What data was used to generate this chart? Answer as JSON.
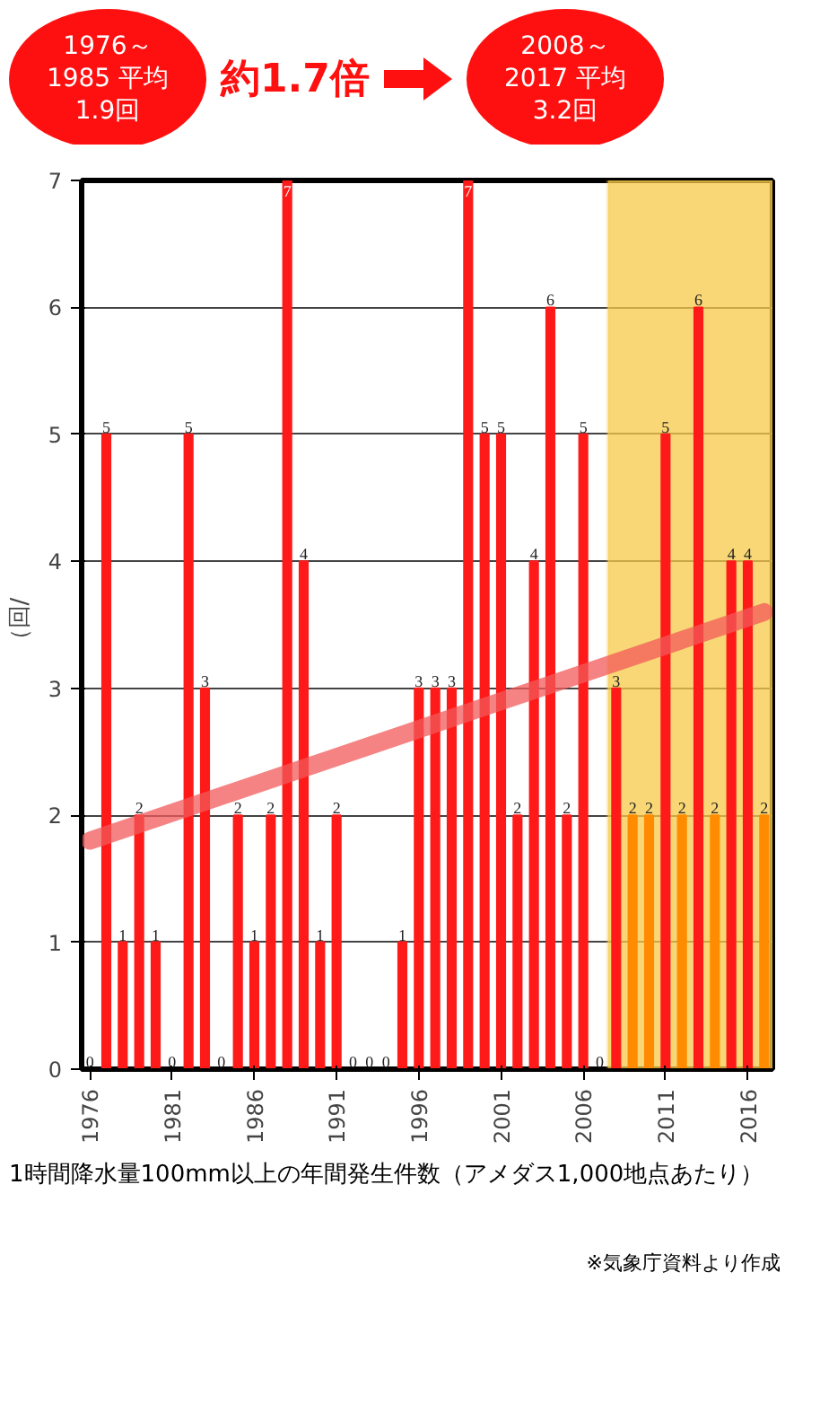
{
  "chart_data": {
    "type": "bar",
    "ylabel": "（回/",
    "xlabel": "1時間降水量100mm以上の年間発生件数（アメダス1,000地点あたり）",
    "x": [
      1976,
      1977,
      1978,
      1979,
      1980,
      1981,
      1982,
      1983,
      1984,
      1985,
      1986,
      1987,
      1988,
      1989,
      1990,
      1991,
      1992,
      1993,
      1994,
      1995,
      1996,
      1997,
      1998,
      1999,
      2000,
      2001,
      2002,
      2003,
      2004,
      2005,
      2006,
      2007,
      2008,
      2009,
      2010,
      2011,
      2012,
      2013,
      2014,
      2015,
      2016,
      2017
    ],
    "series": [
      {
        "color": "#ff1a1a",
        "values": [
          0,
          5,
          1,
          2,
          1,
          0,
          5,
          3,
          0,
          2,
          1,
          2,
          7,
          4,
          1,
          2,
          0,
          0,
          0,
          1,
          3,
          3,
          3,
          7,
          5,
          5,
          2,
          4,
          6,
          2,
          5,
          0,
          3,
          2,
          2,
          5,
          2,
          6,
          2,
          4,
          4,
          2
        ],
        "value_labels": [
          "0",
          "5",
          "1",
          "2",
          "1",
          "0",
          "5",
          "3",
          "0",
          "2",
          "1",
          "2",
          "7",
          "4",
          "1",
          "2",
          "0",
          "0",
          "0",
          "1",
          "3",
          "3",
          "3",
          "7",
          "5",
          "5",
          "2",
          "4",
          "6",
          "2",
          "5",
          "0",
          "3",
          "2",
          "2",
          "5",
          "2",
          "6",
          "2",
          "4",
          "4",
          "2"
        ],
        "colors": [
          "#ff1a1a",
          "#ff1a1a",
          "#ff1a1a",
          "#ff1a1a",
          "#ff1a1a",
          "#ff1a1a",
          "#ff1a1a",
          "#ff1a1a",
          "#ff1a1a",
          "#ff1a1a",
          "#ff1a1a",
          "#ff1a1a",
          "#ff1a1a",
          "#ff1a1a",
          "#ff1a1a",
          "#ff1a1a",
          "#ff1a1a",
          "#ff1a1a",
          "#ff1a1a",
          "#ff1a1a",
          "#ff1a1a",
          "#ff1a1a",
          "#ff1a1a",
          "#ff1a1a",
          "#ff1a1a",
          "#ff1a1a",
          "#ff1a1a",
          "#ff1a1a",
          "#ff1a1a",
          "#ff1a1a",
          "#ff1a1a",
          "#ff1a1a",
          "#ff1a1a",
          "#ff8c00",
          "#ff8c00",
          "#ff1a1a",
          "#ff8c00",
          "#ff1a1a",
          "#ff8c00",
          "#ff1a1a",
          "#ff1a1a",
          "#ff8c00"
        ]
      },
      {
        "type": "line",
        "color": "#f25a5a",
        "x": [
          1976,
          2017
        ],
        "values": [
          1.8,
          3.6
        ]
      }
    ],
    "xlim": [
      1975.5,
      2017.5
    ],
    "xticks": [
      1976,
      1981,
      1986,
      1991,
      1996,
      2001,
      2006,
      2011,
      2016
    ],
    "ylim": [
      0,
      7
    ],
    "yticks": [
      0,
      1,
      2,
      3,
      4,
      5,
      6,
      7
    ],
    "grid": "y",
    "bands": [
      {
        "axis": "x",
        "from": 2007.5,
        "to": 2017.5,
        "color": "#f7c948"
      }
    ],
    "annotations": [
      "1976～1985 平均 1.9回",
      "約1.7倍",
      "2008～2017 平均 3.2回",
      "※気象庁資料より作成"
    ]
  }
}
